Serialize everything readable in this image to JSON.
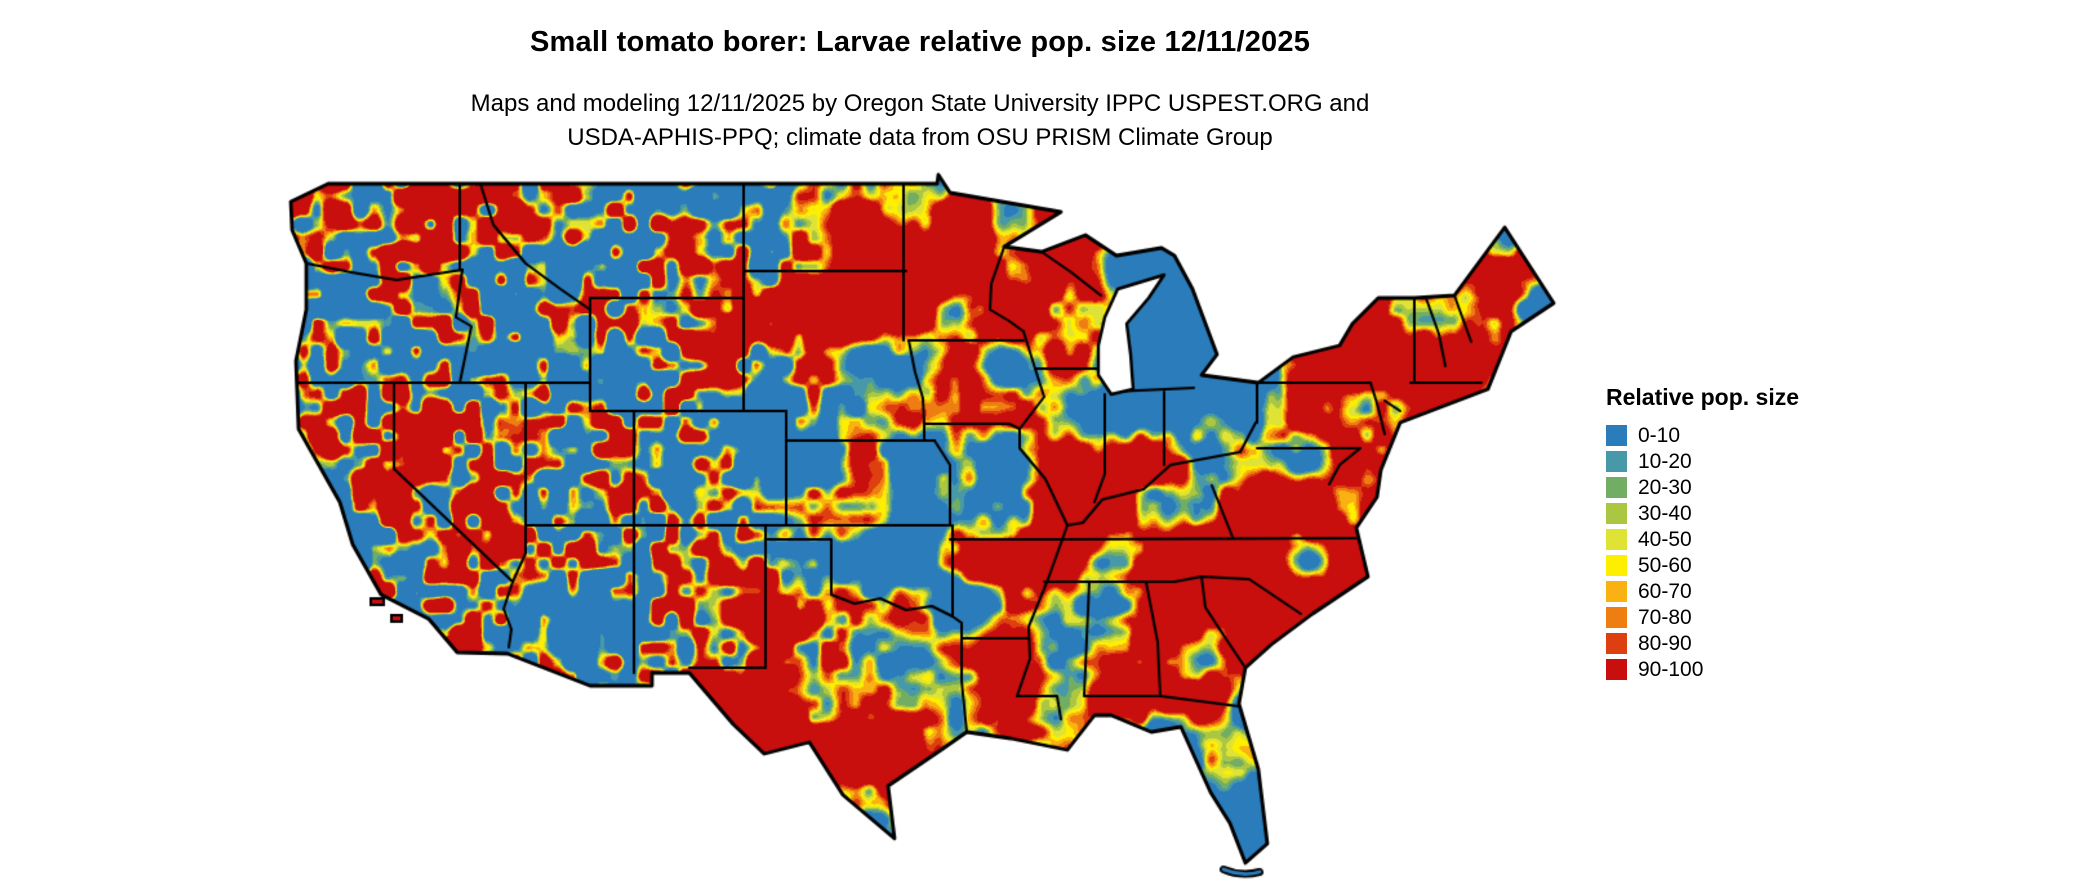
{
  "title": "Small tomato borer: Larvae relative pop. size 12/11/2025",
  "subtitle_line1": "Maps and modeling 12/11/2025 by Oregon State University IPPC USPEST.ORG and",
  "subtitle_line2": "USDA-APHIS-PPQ; climate data from OSU PRISM Climate Group",
  "legend": {
    "title": "Relative pop. size",
    "entries": [
      {
        "label": "0-10",
        "color": "#2b7cba"
      },
      {
        "label": "10-20",
        "color": "#4798a8"
      },
      {
        "label": "20-30",
        "color": "#71ad62"
      },
      {
        "label": "30-40",
        "color": "#abc742"
      },
      {
        "label": "40-50",
        "color": "#dfe335"
      },
      {
        "label": "50-60",
        "color": "#feee00"
      },
      {
        "label": "60-70",
        "color": "#f9b211"
      },
      {
        "label": "70-80",
        "color": "#ef7e12"
      },
      {
        "label": "80-90",
        "color": "#dd3f10"
      },
      {
        "label": "90-100",
        "color": "#c90f0e"
      }
    ]
  },
  "map": {
    "border_color": "#000000",
    "water_color": "#ffffff",
    "background_color": "#ffffff"
  }
}
